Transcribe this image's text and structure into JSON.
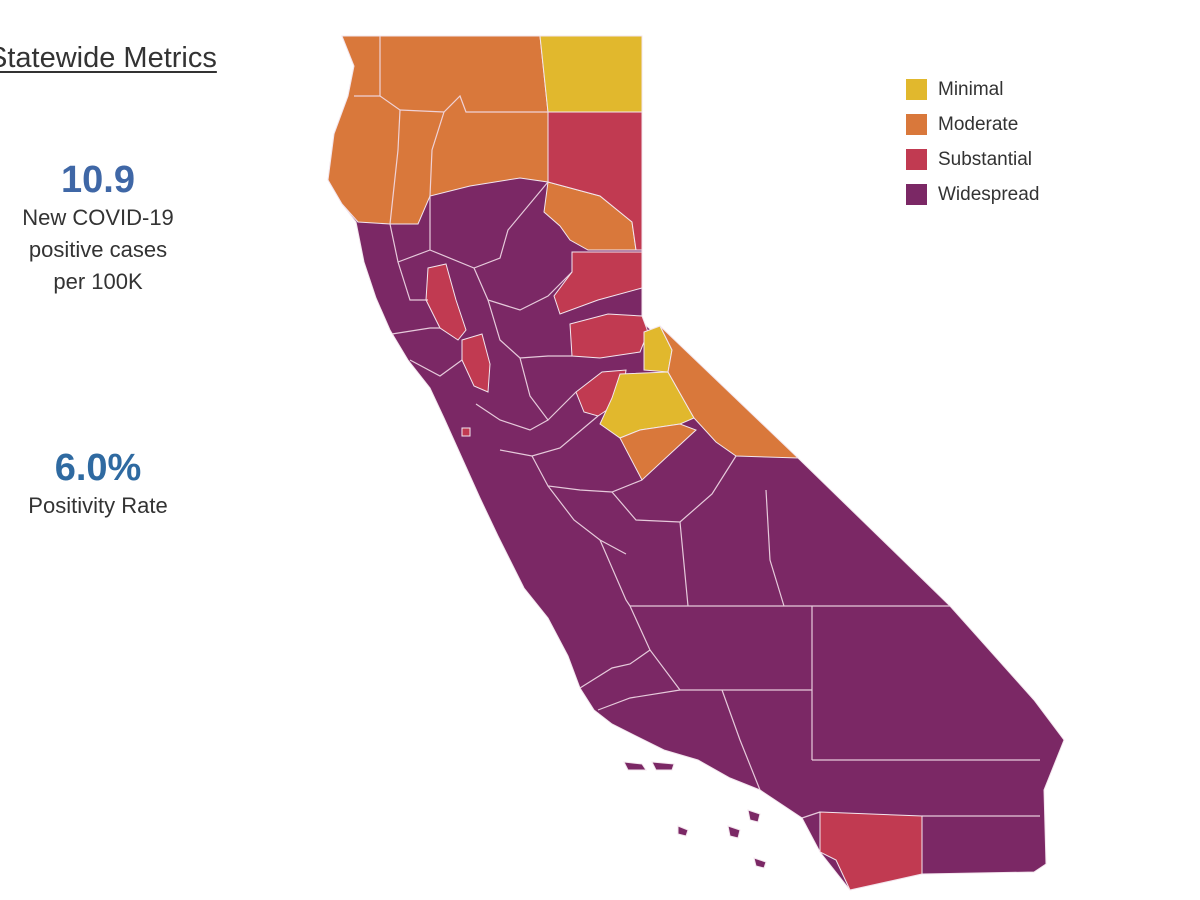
{
  "title": "Statewide Metrics",
  "metrics": {
    "cases": {
      "value": "10.9",
      "label_lines": [
        "New COVID-19",
        "positive cases",
        "per 100K"
      ],
      "color": "#3f67a6"
    },
    "positivity": {
      "value": "6.0%",
      "label": "Positivity Rate",
      "color": "#2f6aa1"
    }
  },
  "legend": [
    {
      "label": "Minimal",
      "color": "#e1b82d"
    },
    {
      "label": "Moderate",
      "color": "#d9783b"
    },
    {
      "label": "Substantial",
      "color": "#c13a51"
    },
    {
      "label": "Widespread",
      "color": "#7b2865"
    }
  ],
  "map": {
    "region": "California counties",
    "region_tiers": [
      {
        "tier": "Minimal",
        "region": "northeast corner"
      },
      {
        "tier": "Moderate",
        "region": "north coast and northern interior"
      },
      {
        "tier": "Substantial",
        "region": "north-central counties"
      },
      {
        "tier": "Minimal",
        "region": "Sierra high country"
      },
      {
        "tier": "Moderate",
        "region": "eastern Sierra"
      },
      {
        "tier": "Substantial",
        "region": "San Diego area"
      },
      {
        "tier": "Widespread",
        "region": "remaining counties"
      }
    ]
  }
}
